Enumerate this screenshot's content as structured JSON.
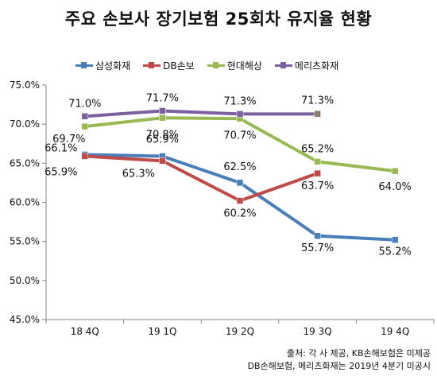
{
  "title": "주요 손보사 장기보험 25회차 유지율 현황",
  "source_lines": [
    "출처: 각 사 제공, KB손해보험은 미제공",
    "DB손해보험, 메리츠화재는 2019년 4분기 미공시"
  ],
  "chart_data": {
    "type": "line",
    "categories": [
      "18 4Q",
      "19 1Q",
      "19 2Q",
      "19 3Q",
      "19 4Q"
    ],
    "ylim": [
      45.0,
      75.0
    ],
    "yticks": [
      "45.0%",
      "50.0%",
      "55.0%",
      "60.0%",
      "65.0%",
      "70.0%",
      "75.0%"
    ],
    "ytick_values": [
      45,
      50,
      55,
      60,
      65,
      70,
      75
    ],
    "series": [
      {
        "name": "삼성화재",
        "color": "#4a7ebb",
        "values": [
          66.1,
          65.9,
          62.5,
          55.7,
          55.2
        ],
        "labels": [
          "66.1%",
          "65.9%",
          "62.5%",
          "55.7%",
          "55.2%"
        ]
      },
      {
        "name": "DB손보",
        "color": "#be4b48",
        "values": [
          65.9,
          65.3,
          60.2,
          63.7,
          null
        ],
        "labels": [
          "65.9%",
          "65.3%",
          "60.2%",
          "63.7%",
          ""
        ]
      },
      {
        "name": "현대해상",
        "color": "#98b954",
        "values": [
          69.7,
          70.8,
          70.7,
          65.2,
          64.0
        ],
        "labels": [
          "69.7%",
          "70.8%",
          "70.7%",
          "65.2%",
          "64.0%"
        ]
      },
      {
        "name": "메리츠화재",
        "color": "#7d60a0",
        "values": [
          71.0,
          71.7,
          71.3,
          71.3,
          null
        ],
        "labels": [
          "71.0%",
          "71.7%",
          "71.3%",
          "71.3%",
          ""
        ],
        "last_marker_color": "#8b7b6b"
      }
    ]
  }
}
